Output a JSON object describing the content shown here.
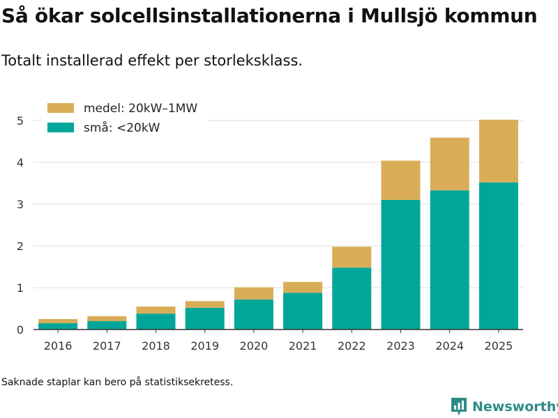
{
  "title": "Så ökar solcellsinstallationerna i Mullsjö kommun",
  "subtitle": "Totalt installerad effekt per storleksklass.",
  "footnote": "Saknade staplar kan bero på statistiksekretess.",
  "brand": {
    "name": "Newsworthy",
    "icon": "newsworthy-logo-icon"
  },
  "colors": {
    "small": "#00a69a",
    "medium": "#d9ad58",
    "grid": "#dddddd",
    "axis": "#333333",
    "brand": "#2e8b87"
  },
  "chart_data": {
    "type": "bar",
    "stacked": true,
    "categories": [
      "2016",
      "2017",
      "2018",
      "2019",
      "2020",
      "2021",
      "2022",
      "2023",
      "2024",
      "2025"
    ],
    "series": [
      {
        "name": "små: <20kW",
        "values": [
          0.15,
          0.2,
          0.38,
          0.52,
          0.72,
          0.88,
          1.48,
          3.1,
          3.33,
          3.52
        ]
      },
      {
        "name": "medel: 20kW–1MW",
        "values": [
          0.1,
          0.12,
          0.17,
          0.16,
          0.29,
          0.26,
          0.5,
          0.94,
          1.26,
          1.5
        ]
      }
    ],
    "yticks": [
      0,
      1,
      2,
      3,
      4,
      5
    ],
    "ylim": [
      0,
      5.3
    ],
    "xlabel": "",
    "ylabel": "",
    "legend_position": "top-left",
    "grid": true
  }
}
